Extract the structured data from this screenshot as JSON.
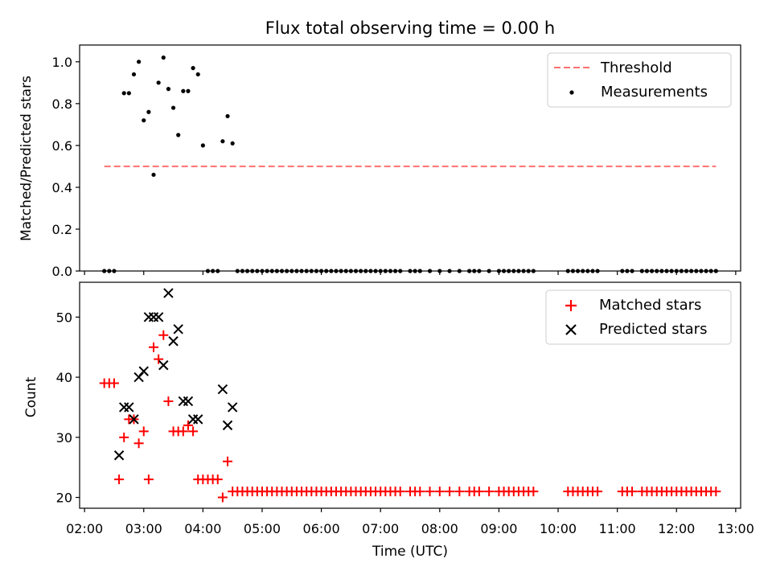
{
  "chart_data": [
    {
      "type": "scatter",
      "title": "Flux total observing time = 0.00 h",
      "xlabel": "",
      "ylabel": "Matched/Predicted stars",
      "ylim": [
        0,
        1.08
      ],
      "yticks": [
        "0.0",
        "0.2",
        "0.4",
        "0.6",
        "0.8",
        "1.0"
      ],
      "legend": {
        "position": "top-right",
        "entries": [
          "Threshold",
          "Measurements"
        ]
      },
      "threshold": {
        "name": "Threshold",
        "value": 0.5,
        "x_range": [
          "02:20",
          "12:40"
        ],
        "color": "#ff7070"
      },
      "series": [
        {
          "name": "Measurements",
          "color": "#000000",
          "x": [
            "02:20",
            "02:25",
            "02:30",
            "02:40",
            "02:45",
            "02:50",
            "02:55",
            "03:00",
            "03:05",
            "03:10",
            "03:15",
            "03:20",
            "03:25",
            "03:30",
            "03:35",
            "03:40",
            "03:45",
            "03:50",
            "03:55",
            "04:00",
            "04:05",
            "04:10",
            "04:15",
            "04:20",
            "04:25",
            "04:30",
            "04:35",
            "04:40",
            "04:45",
            "04:50",
            "04:55",
            "05:00",
            "05:05",
            "05:10",
            "05:15",
            "05:20",
            "05:25",
            "05:30",
            "05:35",
            "05:40",
            "05:45",
            "05:50",
            "05:55",
            "06:00",
            "06:05",
            "06:10",
            "06:15",
            "06:20",
            "06:25",
            "06:30",
            "06:35",
            "06:40",
            "06:45",
            "06:50",
            "06:55",
            "07:00",
            "07:05",
            "07:10",
            "07:15",
            "07:20",
            "07:30",
            "07:35",
            "07:40",
            "07:50",
            "08:00",
            "08:10",
            "08:20",
            "08:30",
            "08:35",
            "08:40",
            "08:50",
            "09:00",
            "09:05",
            "09:10",
            "09:15",
            "09:20",
            "09:25",
            "09:30",
            "09:35",
            "10:10",
            "10:15",
            "10:20",
            "10:25",
            "10:30",
            "10:35",
            "10:40",
            "11:05",
            "11:10",
            "11:15",
            "11:25",
            "11:30",
            "11:35",
            "11:40",
            "11:45",
            "11:50",
            "11:55",
            "12:00",
            "12:05",
            "12:10",
            "12:15",
            "12:20",
            "12:25",
            "12:30",
            "12:35",
            "12:40"
          ],
          "y": [
            0,
            0,
            0,
            0.85,
            0.85,
            0.94,
            1.0,
            0.72,
            0.76,
            0.46,
            0.9,
            1.02,
            0.87,
            0.78,
            0.65,
            0.86,
            0.86,
            0.97,
            0.94,
            0.6,
            0,
            0,
            0,
            0.62,
            0.74,
            0.61,
            0,
            0,
            0,
            0,
            0,
            0,
            0,
            0,
            0,
            0,
            0,
            0,
            0,
            0,
            0,
            0,
            0,
            0,
            0,
            0,
            0,
            0,
            0,
            0,
            0,
            0,
            0,
            0,
            0,
            0,
            0,
            0,
            0,
            0,
            0,
            0,
            0,
            0,
            0,
            0,
            0,
            0,
            0,
            0,
            0,
            0,
            0,
            0,
            0,
            0,
            0,
            0,
            0,
            0,
            0,
            0,
            0,
            0,
            0,
            0,
            0,
            0,
            0,
            0,
            0,
            0,
            0,
            0,
            0,
            0,
            0,
            0,
            0,
            0,
            0,
            0,
            0,
            0,
            0
          ]
        }
      ]
    },
    {
      "type": "scatter",
      "title": "",
      "xlabel": "Time (UTC)",
      "ylabel": "Count",
      "ylim": [
        18.2,
        55.8
      ],
      "yticks": [
        "20",
        "30",
        "40",
        "50"
      ],
      "xlim": [
        "01:55",
        "13:05"
      ],
      "xticks": [
        "02:00",
        "03:00",
        "04:00",
        "05:00",
        "06:00",
        "07:00",
        "08:00",
        "09:00",
        "10:00",
        "11:00",
        "12:00",
        "13:00"
      ],
      "legend": {
        "position": "top-right",
        "entries": [
          "Matched stars",
          "Predicted stars"
        ]
      },
      "series": [
        {
          "name": "Matched stars",
          "color": "#ff0000",
          "marker": "+",
          "x": [
            "02:20",
            "02:25",
            "02:30",
            "02:35",
            "02:40",
            "02:45",
            "02:50",
            "02:55",
            "03:00",
            "03:05",
            "03:10",
            "03:15",
            "03:20",
            "03:25",
            "03:30",
            "03:35",
            "03:40",
            "03:45",
            "03:50",
            "03:55",
            "04:00",
            "04:05",
            "04:10",
            "04:15",
            "04:20",
            "04:25",
            "04:30",
            "04:35",
            "04:40",
            "04:45",
            "04:50",
            "04:55",
            "05:00",
            "05:05",
            "05:10",
            "05:15",
            "05:20",
            "05:25",
            "05:30",
            "05:35",
            "05:40",
            "05:45",
            "05:50",
            "05:55",
            "06:00",
            "06:05",
            "06:10",
            "06:15",
            "06:20",
            "06:25",
            "06:30",
            "06:35",
            "06:40",
            "06:45",
            "06:50",
            "06:55",
            "07:00",
            "07:05",
            "07:10",
            "07:15",
            "07:20",
            "07:30",
            "07:35",
            "07:40",
            "07:50",
            "08:00",
            "08:10",
            "08:20",
            "08:30",
            "08:35",
            "08:40",
            "08:50",
            "09:00",
            "09:05",
            "09:10",
            "09:15",
            "09:20",
            "09:25",
            "09:30",
            "09:35",
            "10:10",
            "10:15",
            "10:20",
            "10:25",
            "10:30",
            "10:35",
            "10:40",
            "11:05",
            "11:10",
            "11:15",
            "11:25",
            "11:30",
            "11:35",
            "11:40",
            "11:45",
            "11:50",
            "11:55",
            "12:00",
            "12:05",
            "12:10",
            "12:15",
            "12:20",
            "12:25",
            "12:30",
            "12:35",
            "12:40"
          ],
          "y": [
            39,
            39,
            39,
            23,
            30,
            33,
            33,
            29,
            31,
            23,
            45,
            43,
            47,
            36,
            31,
            31,
            31,
            32,
            31,
            23,
            23,
            23,
            23,
            23,
            20,
            26,
            21,
            21,
            21,
            21,
            21,
            21,
            21,
            21,
            21,
            21,
            21,
            21,
            21,
            21,
            21,
            21,
            21,
            21,
            21,
            21,
            21,
            21,
            21,
            21,
            21,
            21,
            21,
            21,
            21,
            21,
            21,
            21,
            21,
            21,
            21,
            21,
            21,
            21,
            21,
            21,
            21,
            21,
            21,
            21,
            21,
            21,
            21,
            21,
            21,
            21,
            21,
            21,
            21,
            21,
            21,
            21,
            21,
            21,
            21,
            21,
            21,
            21,
            21,
            21,
            21,
            21,
            21,
            21,
            21,
            21,
            21,
            21,
            21,
            21,
            21,
            21,
            21,
            21,
            21,
            21
          ]
        },
        {
          "name": "Predicted stars",
          "color": "#000000",
          "marker": "x",
          "x": [
            "02:35",
            "02:40",
            "02:45",
            "02:50",
            "02:55",
            "03:00",
            "03:05",
            "03:10",
            "03:15",
            "03:20",
            "03:25",
            "03:30",
            "03:35",
            "03:40",
            "03:45",
            "03:50",
            "03:55",
            "04:20",
            "04:25",
            "04:30"
          ],
          "y": [
            27,
            35,
            35,
            33,
            40,
            41,
            50,
            50,
            50,
            42,
            54,
            46,
            48,
            36,
            36,
            33,
            33,
            38,
            32,
            35
          ]
        }
      ]
    }
  ]
}
